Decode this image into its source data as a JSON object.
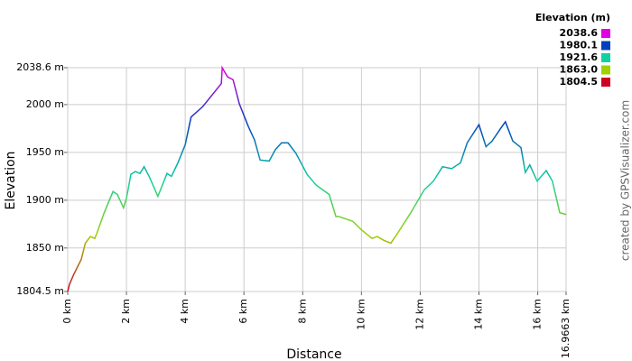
{
  "chart_data": {
    "type": "line",
    "xlabel": "Distance",
    "ylabel": "Elevation",
    "credit": "created by GPSVisualizer.com",
    "x": [
      0,
      0.06,
      0.2,
      0.46,
      0.6,
      0.77,
      0.92,
      1.0,
      1.23,
      1.54,
      1.69,
      1.9,
      2.0,
      2.15,
      2.3,
      2.46,
      2.6,
      2.77,
      3.07,
      3.38,
      3.53,
      3.75,
      4.0,
      4.2,
      4.6,
      5.23,
      5.26,
      5.44,
      5.63,
      5.84,
      6.15,
      6.36,
      6.55,
      6.86,
      7.07,
      7.28,
      7.5,
      7.77,
      8.15,
      8.45,
      8.9,
      9.13,
      9.22,
      9.7,
      10.0,
      10.36,
      10.54,
      10.76,
      11.0,
      11.2,
      11.68,
      12.14,
      12.45,
      12.76,
      13.07,
      13.37,
      13.6,
      14.0,
      14.24,
      14.45,
      14.76,
      14.9,
      15.15,
      15.43,
      15.58,
      15.73,
      15.98,
      16.29,
      16.5,
      16.75,
      16.97
    ],
    "values": [
      1804.5,
      1812,
      1822,
      1838,
      1855,
      1862,
      1860,
      1866,
      1886,
      1909,
      1906,
      1892,
      1902,
      1927,
      1930,
      1928,
      1935,
      1925,
      1904,
      1928,
      1925,
      1939,
      1958,
      1987,
      1998,
      2022,
      2038.6,
      2029,
      2026,
      2001,
      1977,
      1963,
      1942,
      1941,
      1953,
      1960,
      1960,
      1949,
      1927,
      1916,
      1906,
      1883,
      1883,
      1878,
      1869,
      1860,
      1862,
      1858,
      1855,
      1864,
      1887,
      1911,
      1920,
      1935,
      1933,
      1939,
      1960,
      1979,
      1956,
      1962,
      1976,
      1982,
      1962,
      1955,
      1929,
      1937,
      1920,
      1931,
      1920,
      1887,
      1885
    ],
    "xlim": [
      0,
      16.9663
    ],
    "xticks": [
      {
        "value": 0,
        "label": "0 km"
      },
      {
        "value": 2,
        "label": "2 km"
      },
      {
        "value": 4,
        "label": "4 km"
      },
      {
        "value": 6,
        "label": "6 km"
      },
      {
        "value": 8,
        "label": "8 km"
      },
      {
        "value": 10,
        "label": "10 km"
      },
      {
        "value": 12,
        "label": "12 km"
      },
      {
        "value": 14,
        "label": "14 km"
      },
      {
        "value": 16,
        "label": "16 km"
      },
      {
        "value": 16.9663,
        "label": "16.9663 km"
      }
    ],
    "ylim": [
      1804.5,
      2038.6
    ],
    "yticks": [
      {
        "value": 1804.5,
        "label": "1804.5 m"
      },
      {
        "value": 1850,
        "label": "1850 m"
      },
      {
        "value": 1900,
        "label": "1900 m"
      },
      {
        "value": 1950,
        "label": "1950 m"
      },
      {
        "value": 2000,
        "label": "2000 m"
      },
      {
        "value": 2038.6,
        "label": "2038.6 m"
      }
    ],
    "grid": true,
    "legend": {
      "title": "Elevation (m)",
      "values": [
        2038.6,
        1980.1,
        1921.6,
        {
          "value": 1863,
          "label": "1863.0"
        },
        1804.5
      ],
      "colors": [
        "#e000e0",
        "#0040c0",
        "#10d0a0",
        "#a0d000",
        "#d00020"
      ]
    }
  }
}
